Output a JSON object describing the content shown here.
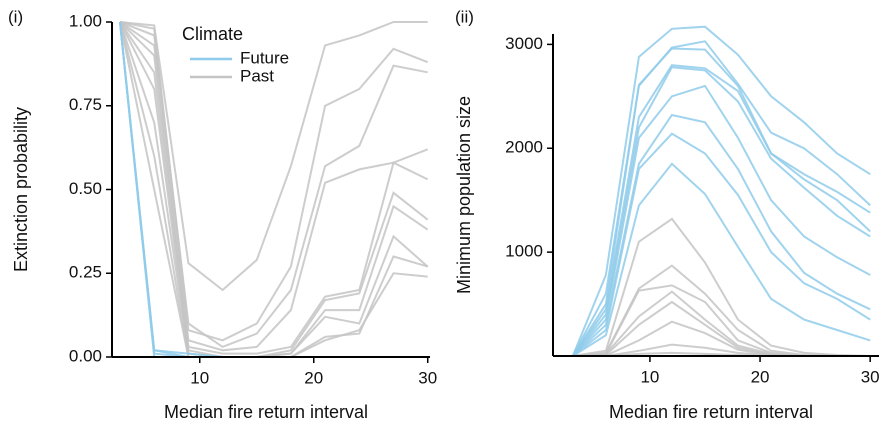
{
  "chart_data": [
    {
      "type": "line",
      "panel_label": "(i)",
      "xlabel": "Median fire return interval",
      "ylabel": "Extinction probability",
      "legend_title": "Climate",
      "legend": "upper-left",
      "x": [
        3,
        6,
        9,
        12,
        15,
        18,
        21,
        24,
        27,
        30
      ],
      "xlim": [
        2.3,
        30.2
      ],
      "ylim": [
        0,
        1
      ],
      "xticks": [
        10,
        20,
        30
      ],
      "yticks": [
        {
          "value": 0,
          "label": "0.00"
        },
        {
          "value": 0.25,
          "label": "0.25"
        },
        {
          "value": 0.5,
          "label": "0.50"
        },
        {
          "value": 0.75,
          "label": "0.75"
        },
        {
          "value": 1,
          "label": "1.00"
        }
      ],
      "series": [
        {
          "name": "Future",
          "color": "#8fcbea",
          "values": [
            [
              1,
              0.02,
              0,
              0,
              0,
              0,
              0,
              0,
              0,
              0
            ],
            [
              1,
              0.01,
              0,
              0,
              0,
              0,
              0,
              0,
              0,
              0
            ],
            [
              1,
              0.02,
              0.01,
              0,
              0,
              0,
              0,
              0,
              0,
              0
            ],
            [
              1,
              0,
              0,
              0,
              0,
              0,
              0,
              0,
              0,
              0
            ]
          ]
        },
        {
          "name": "Past",
          "color": "#c4c4c4",
          "values": [
            [
              1,
              0.99,
              0.28,
              0.2,
              0.29,
              0.57,
              0.93,
              0.96,
              1,
              1
            ],
            [
              1,
              0.98,
              0.08,
              0.05,
              0.1,
              0.27,
              0.75,
              0.8,
              0.92,
              0.88
            ],
            [
              1,
              0.96,
              0.1,
              0.03,
              0.07,
              0.2,
              0.57,
              0.63,
              0.87,
              0.85
            ],
            [
              1,
              0.93,
              0.05,
              0.02,
              0.03,
              0.14,
              0.52,
              0.56,
              0.58,
              0.62
            ],
            [
              1,
              0.9,
              0.03,
              0.01,
              0.01,
              0.03,
              0.18,
              0.2,
              0.58,
              0.53
            ],
            [
              1,
              0.85,
              0.02,
              0,
              0,
              0.02,
              0.17,
              0.19,
              0.49,
              0.41
            ],
            [
              1,
              0.8,
              0.01,
              0,
              0,
              0.01,
              0.14,
              0.14,
              0.45,
              0.38
            ],
            [
              1,
              0.7,
              0.01,
              0,
              0,
              0.01,
              0.12,
              0.1,
              0.36,
              0.27
            ],
            [
              1,
              0.6,
              0,
              0,
              0,
              0,
              0.05,
              0.08,
              0.25,
              0.24
            ],
            [
              1,
              0.5,
              0,
              0,
              0,
              0,
              0.06,
              0.07,
              0.3,
              0.27
            ]
          ]
        }
      ]
    },
    {
      "type": "line",
      "panel_label": "(ii)",
      "xlabel": "Median fire return interval",
      "ylabel": "Minimum population size",
      "x": [
        3,
        6,
        9,
        12,
        15,
        18,
        21,
        24,
        27,
        30
      ],
      "xlim": [
        1.2,
        30.8
      ],
      "ylim": [
        0,
        3100
      ],
      "xticks": [
        10,
        20,
        30
      ],
      "yticks": [
        1000,
        2000,
        3000
      ],
      "series": [
        {
          "color": "#8fcbea",
          "values": [
            [
              0,
              780,
              2880,
              3150,
              3170,
              2900,
              2500,
              2250,
              1950,
              1750
            ],
            [
              0,
              600,
              2600,
              2970,
              3030,
              2620,
              2150,
              2000,
              1750,
              1450
            ],
            [
              0,
              500,
              2610,
              2960,
              2950,
              2600,
              1950,
              1750,
              1580,
              1380
            ],
            [
              0,
              450,
              2300,
              2800,
              2770,
              2550,
              1950,
              1700,
              1500,
              1200
            ],
            [
              0,
              400,
              2200,
              2780,
              2750,
              2450,
              1900,
              1620,
              1350,
              1150
            ],
            [
              0,
              350,
              2100,
              2500,
              2600,
              2100,
              1500,
              1150,
              950,
              780
            ],
            [
              0,
              300,
              1850,
              2320,
              2250,
              1800,
              1200,
              800,
              600,
              450
            ],
            [
              0,
              250,
              1800,
              2140,
              1950,
              1550,
              1000,
              700,
              550,
              350
            ],
            [
              0,
              200,
              1450,
              1850,
              1560,
              1050,
              550,
              350,
              250,
              150
            ]
          ]
        },
        {
          "color": "#c4c4c4",
          "values": [
            [
              0,
              50,
              1100,
              1320,
              900,
              350,
              100,
              30,
              10,
              0
            ],
            [
              0,
              30,
              650,
              870,
              600,
              250,
              50,
              10,
              0,
              0
            ],
            [
              0,
              20,
              630,
              680,
              520,
              150,
              30,
              0,
              0,
              0
            ],
            [
              0,
              20,
              380,
              620,
              350,
              100,
              20,
              0,
              0,
              0
            ],
            [
              0,
              10,
              300,
              520,
              300,
              80,
              10,
              0,
              0,
              0
            ],
            [
              0,
              5,
              150,
              330,
              220,
              60,
              10,
              0,
              0,
              0
            ],
            [
              0,
              0,
              50,
              110,
              80,
              30,
              5,
              0,
              0,
              0
            ],
            [
              0,
              0,
              20,
              30,
              20,
              10,
              0,
              0,
              0,
              0
            ]
          ]
        }
      ]
    }
  ]
}
